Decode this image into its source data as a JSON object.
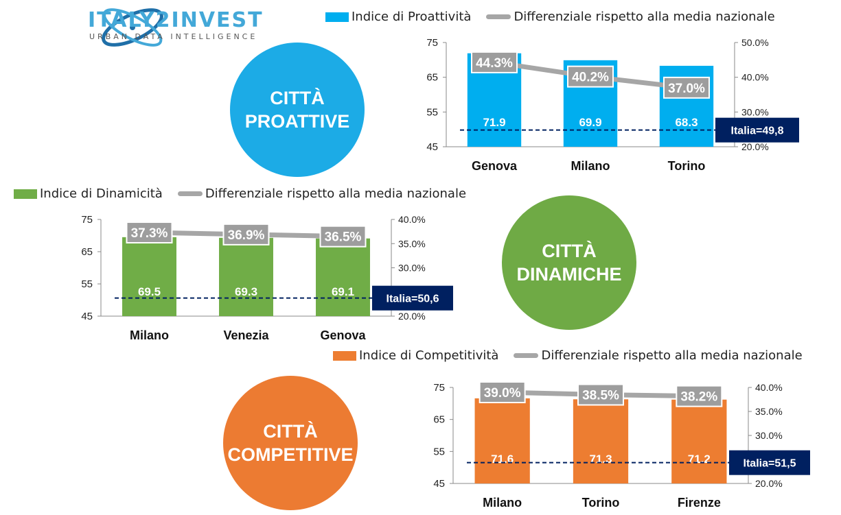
{
  "brand": {
    "name": "ITALY2INVEST",
    "tagline": "URBAN DATA INTELLIGENCE"
  },
  "colors": {
    "blue": "#00aeef",
    "green": "#70ad47",
    "orange": "#ed7d31",
    "gray_line": "#a6a6a6",
    "navy": "#002060"
  },
  "circles": [
    {
      "line1": "CITTÀ",
      "line2": "PROATTIVE"
    },
    {
      "line1": "CITTÀ",
      "line2": "DINAMICHE"
    },
    {
      "line1": "CITTÀ",
      "line2": "COMPETITIVE"
    }
  ],
  "chart_data": [
    {
      "type": "bar",
      "categories": [
        "Genova",
        "Milano",
        "Torino"
      ],
      "series": [
        {
          "name": "Indice di Proattività",
          "values": [
            71.9,
            69.9,
            68.3
          ],
          "labels": [
            "71.9",
            "69.9",
            "68.3"
          ]
        },
        {
          "name": "Differenziale rispetto alla media nazionale",
          "values": [
            44.3,
            40.2,
            37.0
          ],
          "labels": [
            "44.3%",
            "40.2%",
            "37.0%"
          ],
          "axis": "secondary"
        }
      ],
      "yticks": [
        "45",
        "55",
        "65",
        "75"
      ],
      "ylim": [
        45,
        75
      ],
      "y2ticks": [
        "20.0%",
        "30.0%",
        "40.0%",
        "50.0%"
      ],
      "y2lim": [
        20,
        50
      ],
      "reference": {
        "value": 49.8,
        "label": "Italia=49,8"
      }
    },
    {
      "type": "bar",
      "categories": [
        "Milano",
        "Venezia",
        "Genova"
      ],
      "series": [
        {
          "name": "Indice di Dinamicità",
          "values": [
            69.5,
            69.3,
            69.1
          ],
          "labels": [
            "69.5",
            "69.3",
            "69.1"
          ]
        },
        {
          "name": "Differenziale rispetto alla media nazionale",
          "values": [
            37.3,
            36.9,
            36.5
          ],
          "labels": [
            "37.3%",
            "36.9%",
            "36.5%"
          ],
          "axis": "secondary"
        }
      ],
      "yticks": [
        "45",
        "55",
        "65",
        "75"
      ],
      "ylim": [
        45,
        75
      ],
      "y2ticks": [
        "20.0%",
        "30.0%",
        "35.0%",
        "40.0%"
      ],
      "y2lim": [
        20,
        40
      ],
      "reference": {
        "value": 50.6,
        "label": "Italia=50,6"
      }
    },
    {
      "type": "bar",
      "categories": [
        "Milano",
        "Torino",
        "Firenze"
      ],
      "series": [
        {
          "name": "Indice di Competitività",
          "values": [
            71.6,
            71.3,
            71.2
          ],
          "labels": [
            "71.6",
            "71.3",
            "71.2"
          ]
        },
        {
          "name": "Differenziale rispetto alla media nazionale",
          "values": [
            39.0,
            38.5,
            38.2
          ],
          "labels": [
            "39.0%",
            "38.5%",
            "38.2%"
          ],
          "axis": "secondary"
        }
      ],
      "yticks": [
        "45",
        "55",
        "65",
        "75"
      ],
      "ylim": [
        45,
        75
      ],
      "y2ticks": [
        "20.0%",
        "30.0%",
        "35.0%",
        "40.0%"
      ],
      "y2lim": [
        20,
        40
      ],
      "reference": {
        "value": 51.5,
        "label": "Italia=51,5"
      }
    }
  ]
}
